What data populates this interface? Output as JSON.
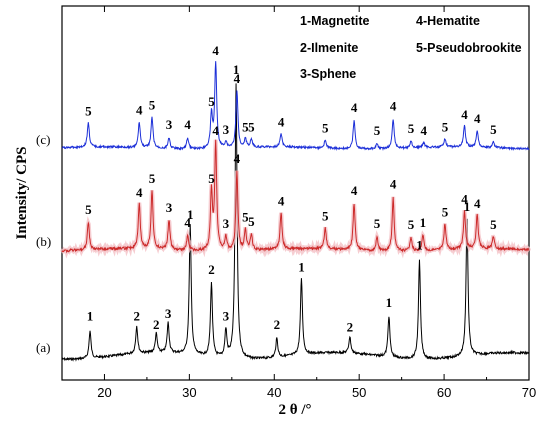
{
  "chart_data": {
    "type": "line",
    "xlabel": "2 θ /°",
    "ylabel": "Intensity/ CPS",
    "xlim": [
      15,
      70
    ],
    "xticks": [
      20,
      30,
      40,
      50,
      60,
      70
    ],
    "grid": false,
    "legend": [
      {
        "num": "1",
        "name": "1-Magnetite"
      },
      {
        "num": "2",
        "name": "2-Ilmenite"
      },
      {
        "num": "3",
        "name": "3-Sphene"
      },
      {
        "num": "4",
        "name": "4-Hematite"
      },
      {
        "num": "5",
        "name": "5-Pseudobrookite"
      }
    ],
    "series": [
      {
        "name": "(a)",
        "color": "#000000",
        "peaks": [
          {
            "x": 18.3,
            "h": 0.1,
            "label": "1"
          },
          {
            "x": 23.8,
            "h": 0.1,
            "label": "2"
          },
          {
            "x": 26.1,
            "h": 0.07,
            "label": "2"
          },
          {
            "x": 27.5,
            "h": 0.11,
            "label": "3"
          },
          {
            "x": 30.1,
            "h": 0.47,
            "label": "1"
          },
          {
            "x": 32.6,
            "h": 0.27,
            "label": "2"
          },
          {
            "x": 34.3,
            "h": 0.1,
            "label": "3"
          },
          {
            "x": 35.5,
            "h": 1.0,
            "label": "1"
          },
          {
            "x": 40.3,
            "h": 0.07,
            "label": "2"
          },
          {
            "x": 43.2,
            "h": 0.28,
            "label": "1"
          },
          {
            "x": 48.9,
            "h": 0.06,
            "label": "2"
          },
          {
            "x": 53.5,
            "h": 0.15,
            "label": "1"
          },
          {
            "x": 57.1,
            "h": 0.36,
            "label": "1"
          },
          {
            "x": 62.7,
            "h": 0.5,
            "label": "1"
          }
        ]
      },
      {
        "name": "(b)",
        "color": "#cc2a2a",
        "peaks": [
          {
            "x": 18.1,
            "h": 0.26,
            "label": "5"
          },
          {
            "x": 24.1,
            "h": 0.42,
            "label": "4"
          },
          {
            "x": 25.6,
            "h": 0.55,
            "label": "5"
          },
          {
            "x": 27.6,
            "h": 0.28,
            "label": "3"
          },
          {
            "x": 29.8,
            "h": 0.14,
            "label": "4"
          },
          {
            "x": 32.6,
            "h": 0.55,
            "label": "5"
          },
          {
            "x": 33.1,
            "h": 1.0,
            "label": "4"
          },
          {
            "x": 34.3,
            "h": 0.13,
            "label": "3"
          },
          {
            "x": 35.6,
            "h": 0.74,
            "label": "4"
          },
          {
            "x": 36.6,
            "h": 0.19,
            "label": "5"
          },
          {
            "x": 37.3,
            "h": 0.15,
            "label": "5"
          },
          {
            "x": 40.8,
            "h": 0.34,
            "label": "4"
          },
          {
            "x": 46.0,
            "h": 0.2,
            "label": "5"
          },
          {
            "x": 49.4,
            "h": 0.44,
            "label": "4"
          },
          {
            "x": 52.1,
            "h": 0.13,
            "label": "5"
          },
          {
            "x": 54.0,
            "h": 0.5,
            "label": "4"
          },
          {
            "x": 56.1,
            "h": 0.12,
            "label": "5"
          },
          {
            "x": 57.5,
            "h": 0.14,
            "label": "1"
          },
          {
            "x": 60.1,
            "h": 0.24,
            "label": "5"
          },
          {
            "x": 62.4,
            "h": 0.36,
            "label": "4"
          },
          {
            "x": 63.9,
            "h": 0.32,
            "label": "4"
          },
          {
            "x": 65.8,
            "h": 0.12,
            "label": "5"
          }
        ]
      },
      {
        "name": "(c)",
        "color": "#1c2fd8",
        "peaks": [
          {
            "x": 18.1,
            "h": 0.29,
            "label": "5"
          },
          {
            "x": 24.1,
            "h": 0.3,
            "label": "4"
          },
          {
            "x": 25.6,
            "h": 0.36,
            "label": "5"
          },
          {
            "x": 27.6,
            "h": 0.13,
            "label": "3"
          },
          {
            "x": 29.8,
            "h": 0.13,
            "label": "4"
          },
          {
            "x": 32.6,
            "h": 0.4,
            "label": "5"
          },
          {
            "x": 33.1,
            "h": 1.0,
            "label": "4"
          },
          {
            "x": 34.3,
            "h": 0.07,
            "label": "3"
          },
          {
            "x": 35.6,
            "h": 0.67,
            "label": "4"
          },
          {
            "x": 36.6,
            "h": 0.1,
            "label": "5"
          },
          {
            "x": 37.3,
            "h": 0.1,
            "label": "5"
          },
          {
            "x": 40.8,
            "h": 0.16,
            "label": "4"
          },
          {
            "x": 46.0,
            "h": 0.09,
            "label": "5"
          },
          {
            "x": 49.4,
            "h": 0.33,
            "label": "4"
          },
          {
            "x": 52.1,
            "h": 0.06,
            "label": "5"
          },
          {
            "x": 54.0,
            "h": 0.35,
            "label": "4"
          },
          {
            "x": 56.1,
            "h": 0.08,
            "label": "5"
          },
          {
            "x": 57.6,
            "h": 0.06,
            "label": "4"
          },
          {
            "x": 60.1,
            "h": 0.1,
            "label": "5"
          },
          {
            "x": 62.4,
            "h": 0.25,
            "label": "4"
          },
          {
            "x": 63.9,
            "h": 0.2,
            "label": "4"
          },
          {
            "x": 65.8,
            "h": 0.07,
            "label": "5"
          }
        ]
      }
    ]
  }
}
